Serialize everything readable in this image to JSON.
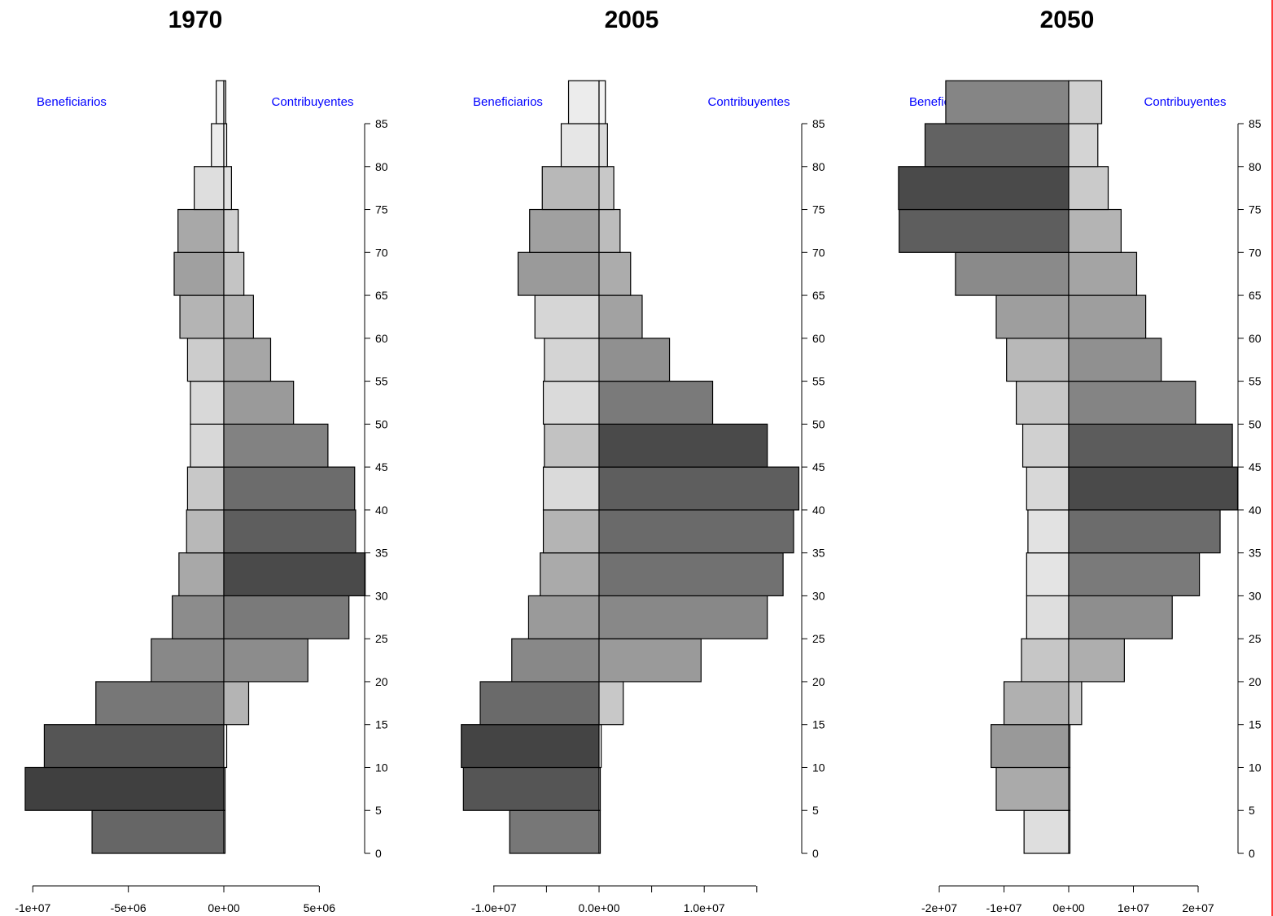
{
  "chart_data": [
    {
      "type": "bar",
      "orientation": "horizontal-pyramid",
      "title": "1970",
      "left_label": "Beneficiarios",
      "right_label": "Contribuyentes",
      "age_ticks": [
        0,
        5,
        10,
        15,
        20,
        25,
        30,
        35,
        40,
        45,
        50,
        55,
        60,
        65,
        70,
        75,
        80,
        85
      ],
      "x_ticks": [
        -10000000.0,
        -5000000.0,
        0,
        5000000.0
      ],
      "x_tick_labels": [
        "-1e+07",
        "-5e+06",
        "0e+00",
        "5e+06"
      ],
      "xlim": [
        -10000000.0,
        7400000.0
      ],
      "ylim": [
        0,
        90
      ],
      "series": [
        {
          "name": "Beneficiarios",
          "ages": [
            0,
            5,
            10,
            15,
            20,
            25,
            30,
            35,
            40,
            45,
            50,
            55,
            60,
            65,
            70,
            75,
            80,
            85
          ],
          "values": [
            -6900000,
            -10400000,
            -9400000,
            -6700000,
            -3800000,
            -2700000,
            -2350000,
            -1950000,
            -1900000,
            -1750000,
            -1750000,
            -1900000,
            -2300000,
            -2600000,
            -2400000,
            -1550000,
            -650000,
            -400000
          ],
          "colors": [
            "#666666",
            "#404040",
            "#555555",
            "#777777",
            "#888888",
            "#8c8c8c",
            "#a8a8a8",
            "#b8b8b8",
            "#c8c8c8",
            "#d8d8d8",
            "#d8d8d8",
            "#cccccc",
            "#b4b4b4",
            "#a0a0a0",
            "#a8a8a8",
            "#dedede",
            "#ececec",
            "#f2f2f2"
          ]
        },
        {
          "name": "Contribuyentes",
          "ages": [
            0,
            5,
            10,
            15,
            20,
            25,
            30,
            35,
            40,
            45,
            50,
            55,
            60,
            65,
            70,
            75,
            80,
            85
          ],
          "values": [
            0,
            50000,
            150000,
            1300000,
            4400000,
            6550000,
            7400000,
            6900000,
            6850000,
            5450000,
            3650000,
            2450000,
            1550000,
            1050000,
            750000,
            400000,
            150000,
            100000
          ],
          "colors": [
            "#ffffff",
            "#ffffff",
            "#ffffff",
            "#b4b4b4",
            "#8c8c8c",
            "#7a7a7a",
            "#4a4a4a",
            "#5e5e5e",
            "#6c6c6c",
            "#828282",
            "#9a9a9a",
            "#a6a6a6",
            "#b4b4b4",
            "#c4c4c4",
            "#d0d0d0",
            "#e0e0e0",
            "#ececec",
            "#f4f4f4"
          ]
        }
      ]
    },
    {
      "type": "bar",
      "orientation": "horizontal-pyramid",
      "title": "2005",
      "left_label": "Beneficiarios",
      "right_label": "Contribuyentes",
      "age_ticks": [
        0,
        5,
        10,
        15,
        20,
        25,
        30,
        35,
        40,
        45,
        50,
        55,
        60,
        65,
        70,
        75,
        80,
        85
      ],
      "x_ticks": [
        -10000000.0,
        -5000000.0,
        0,
        5000000.0,
        10000000.0,
        15000000.0
      ],
      "x_tick_labels": [
        "-1.0e+07",
        "",
        "0.0e+00",
        "",
        "1.0e+07",
        ""
      ],
      "xlim": [
        -13000000.0,
        19300000.0
      ],
      "ylim": [
        0,
        90
      ],
      "series": [
        {
          "name": "Beneficiarios",
          "ages": [
            0,
            5,
            10,
            15,
            20,
            25,
            30,
            35,
            40,
            45,
            50,
            55,
            60,
            65,
            70,
            75,
            80,
            85
          ],
          "values": [
            -8500000,
            -12900000,
            -13100000,
            -11300000,
            -8300000,
            -6700000,
            -5600000,
            -5300000,
            -5300000,
            -5200000,
            -5300000,
            -5200000,
            -6100000,
            -7700000,
            -6600000,
            -5400000,
            -3600000,
            -2900000
          ],
          "colors": [
            "#777777",
            "#555555",
            "#444444",
            "#6a6a6a",
            "#888888",
            "#9a9a9a",
            "#aaaaaa",
            "#b4b4b4",
            "#dadada",
            "#c2c2c2",
            "#dadada",
            "#d4d4d4",
            "#d6d6d6",
            "#9a9a9a",
            "#a0a0a0",
            "#b8b8b8",
            "#e6e6e6",
            "#ececec"
          ]
        },
        {
          "name": "Contribuyentes",
          "ages": [
            0,
            5,
            10,
            15,
            20,
            25,
            30,
            35,
            40,
            45,
            50,
            55,
            60,
            65,
            70,
            75,
            80,
            85
          ],
          "values": [
            0,
            0,
            200000,
            2300000,
            9700000,
            16000000,
            17500000,
            18500000,
            19000000,
            16000000,
            10800000,
            6700000,
            4100000,
            3000000,
            2000000,
            1400000,
            800000,
            600000
          ],
          "colors": [
            "#ffffff",
            "#ffffff",
            "#ffffff",
            "#c8c8c8",
            "#9a9a9a",
            "#888888",
            "#717171",
            "#6a6a6a",
            "#5e5e5e",
            "#4a4a4a",
            "#7a7a7a",
            "#909090",
            "#a2a2a2",
            "#acacac",
            "#bcbcbc",
            "#c8c8c8",
            "#dadada",
            "#f2f2f2"
          ]
        }
      ]
    },
    {
      "type": "bar",
      "orientation": "horizontal-pyramid",
      "title": "2050",
      "left_label": "Beneficiarios",
      "right_label": "Contribuyentes",
      "age_ticks": [
        0,
        5,
        10,
        15,
        20,
        25,
        30,
        35,
        40,
        45,
        50,
        55,
        60,
        65,
        70,
        75,
        80,
        85
      ],
      "x_ticks": [
        -20000000.0,
        -10000000.0,
        0,
        10000000.0,
        20000000.0
      ],
      "x_tick_labels": [
        "-2e+07",
        "-1e+07",
        "0e+00",
        "1e+07",
        "2e+07"
      ],
      "xlim": [
        -26000000.0,
        26000000.0
      ],
      "ylim": [
        0,
        90
      ],
      "series": [
        {
          "name": "Beneficiarios",
          "ages": [
            0,
            5,
            10,
            15,
            20,
            25,
            30,
            35,
            40,
            45,
            50,
            55,
            60,
            65,
            70,
            75,
            80,
            85
          ],
          "values": [
            -6900000,
            -11200000,
            -12000000,
            -10000000,
            -7300000,
            -6500000,
            -6500000,
            -6300000,
            -6500000,
            -7100000,
            -8100000,
            -9600000,
            -11200000,
            -17500000,
            -26200000,
            -26300000,
            -22200000,
            -19000000
          ],
          "colors": [
            "#dedede",
            "#aaaaaa",
            "#999999",
            "#b0b0b0",
            "#c6c6c6",
            "#dedede",
            "#e4e4e4",
            "#e2e2e2",
            "#d8d8d8",
            "#d0d0d0",
            "#c6c6c6",
            "#b8b8b8",
            "#9e9e9e",
            "#8a8a8a",
            "#5e5e5e",
            "#4a4a4a",
            "#626262",
            "#858585"
          ]
        },
        {
          "name": "Contribuyentes",
          "ages": [
            0,
            5,
            10,
            15,
            20,
            25,
            30,
            35,
            40,
            45,
            50,
            55,
            60,
            65,
            70,
            75,
            80,
            85
          ],
          "values": [
            0,
            0,
            100000,
            2000000,
            8600000,
            16000000,
            20200000,
            23400000,
            26100000,
            25300000,
            19600000,
            14300000,
            11900000,
            10500000,
            8100000,
            6100000,
            4500000,
            5100000
          ],
          "colors": [
            "#ffffff",
            "#ffffff",
            "#ffffff",
            "#c8c8c8",
            "#aeaeae",
            "#8e8e8e",
            "#7a7a7a",
            "#6c6c6c",
            "#4a4a4a",
            "#5c5c5c",
            "#848484",
            "#909090",
            "#9e9e9e",
            "#a4a4a4",
            "#b4b4b4",
            "#cacaca",
            "#d4d4d4",
            "#d0d0d0"
          ]
        }
      ]
    }
  ]
}
